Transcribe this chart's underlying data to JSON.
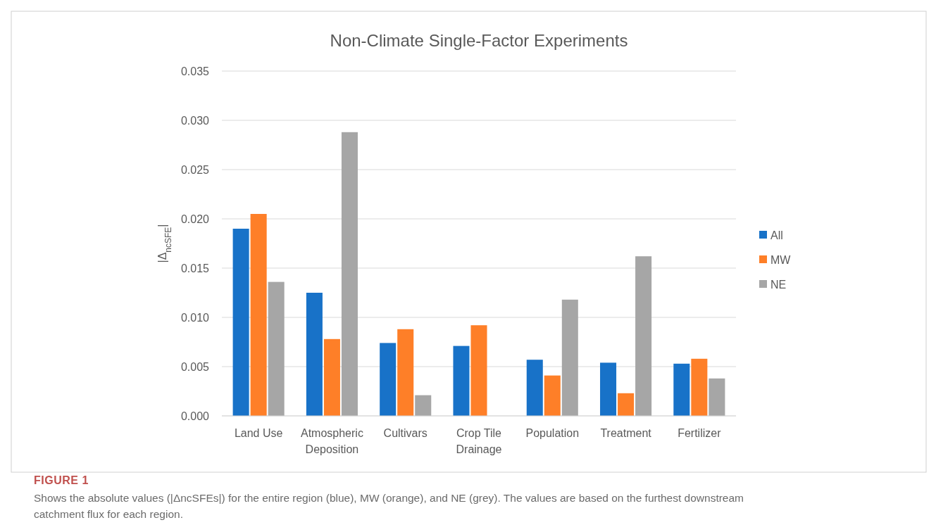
{
  "chart_data": {
    "type": "bar",
    "title": "Non-Climate Single-Factor Experiments",
    "ylabel": "|Δ$_{ncSFE}$|",
    "categories": [
      "Land Use",
      "Atmospheric Deposition",
      "Cultivars",
      "Crop Tile Drainage",
      "Population",
      "Treatment",
      "Fertilizer"
    ],
    "series": [
      {
        "name": "All",
        "color": "#1872c8",
        "values": [
          0.019,
          0.0125,
          0.0074,
          0.0071,
          0.0057,
          0.0054,
          0.0053
        ]
      },
      {
        "name": "MW",
        "color": "#fe7f28",
        "values": [
          0.0205,
          0.0078,
          0.0088,
          0.0092,
          0.0041,
          0.0023,
          0.0058
        ]
      },
      {
        "name": "NE",
        "color": "#a6a6a6",
        "values": [
          0.0136,
          0.0288,
          0.0021,
          null,
          0.0118,
          0.0162,
          0.0038
        ]
      }
    ],
    "ylim": [
      0,
      0.035
    ],
    "yticks": [
      {
        "value": 0,
        "label": "0.000"
      },
      {
        "value": 0.005,
        "label": "0.005"
      },
      {
        "value": 0.01,
        "label": "0.010"
      },
      {
        "value": 0.015,
        "label": "0.015"
      },
      {
        "value": 0.02,
        "label": "0.020"
      },
      {
        "value": 0.025,
        "label": "0.025"
      },
      {
        "value": 0.03,
        "label": "0.030"
      },
      {
        "value": 0.035,
        "label": "0.035"
      }
    ],
    "grid": "y",
    "legend": "right",
    "annotations": [
      "FIGURE 1",
      "Shows the absolute values (|ΔncSFEs|) for the entire region (blue), MW (orange), and NE (grey). The values are based on the furthest downstream catchment flux for each region."
    ]
  }
}
